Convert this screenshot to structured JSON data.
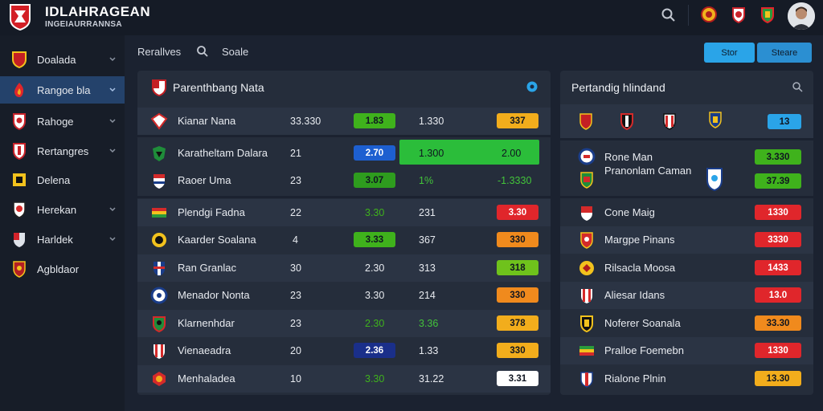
{
  "header": {
    "brand_title": "IDLAHRAGEAN",
    "brand_subtitle": "INGEIAURRANNSA"
  },
  "sidebar": {
    "items": [
      {
        "label": "Doalada",
        "icon": "club-crest-icon"
      },
      {
        "label": "Rangoe bla",
        "icon": "flame-crest-icon"
      },
      {
        "label": "Rahoge",
        "icon": "shield-crest-icon"
      },
      {
        "label": "Rertangres",
        "icon": "shield-crest-icon"
      },
      {
        "label": "Delena",
        "icon": "yellow-badge-icon"
      },
      {
        "label": "Herekan",
        "icon": "shield-crest-icon"
      },
      {
        "label": "Harldek",
        "icon": "flag-crest-icon"
      },
      {
        "label": "Agbldaor",
        "icon": "shield-crest-icon"
      }
    ]
  },
  "subnav": {
    "tab1": "Rerallves",
    "tab2": "Soale",
    "btn_primary": "Stor",
    "btn_secondary": "Steare"
  },
  "left_panel": {
    "title": "Parenthbang Nata",
    "rows": [
      {
        "team": "Kianar Nana",
        "n1": "33.330",
        "p1": "1.83",
        "n2": "1.330",
        "p2": "337"
      },
      {
        "team": "Karatheltam Dalara",
        "n1": "21",
        "p1": "2.70",
        "n2": "1.300",
        "p2": "2.00"
      },
      {
        "team": "Raoer Uma",
        "n1": "23",
        "p1": "3.07",
        "n2": "1%",
        "p2": "-1.3330"
      },
      {
        "team": "Plendgi Fadna",
        "n1": "22",
        "p1": "3.30",
        "n2": "231",
        "p2": "3.30"
      },
      {
        "team": "Kaarder Soalana",
        "n1": "4",
        "p1": "3.33",
        "n2": "367",
        "p2": "330"
      },
      {
        "team": "Ran Granlac",
        "n1": "30",
        "p1": "2.30",
        "n2": "313",
        "p2": "318"
      },
      {
        "team": "Menador Nonta",
        "n1": "23",
        "p1": "3.30",
        "n2": "214",
        "p2": "330"
      },
      {
        "team": "Klarnenhdar",
        "n1": "23",
        "p1": "2.30",
        "n2": "3.36",
        "p2": "378"
      },
      {
        "team": "Vienaeadra",
        "n1": "20",
        "p1": "2.36",
        "n2": "1.33",
        "p2": "330"
      },
      {
        "team": "Menhaladea",
        "n1": "10",
        "p1": "3.30",
        "n2": "31.22",
        "p2": "3.31"
      }
    ]
  },
  "right_panel": {
    "title": "Pertandig hlindand",
    "header_pill": "13",
    "rows": [
      {
        "team": "Rone Man",
        "val": "3.330"
      },
      {
        "team": "Pranonlam Caman",
        "val": "37.39"
      },
      {
        "team": "Cone Maig",
        "val": "1330"
      },
      {
        "team": "Margpe Pinans",
        "val": "3330"
      },
      {
        "team": "Rilsacla Moosa",
        "val": "1433"
      },
      {
        "team": "Aliesar Idans",
        "val": "13.0"
      },
      {
        "team": "Noferer Soanala",
        "val": "33.30"
      },
      {
        "team": "Pralloe Foemebn",
        "val": "1330"
      },
      {
        "team": "Rialone Plnin",
        "val": "13.30"
      }
    ]
  },
  "colors": {
    "green": "#3fb21c",
    "blue": "#1d5fd0",
    "orange": "#f08a1d",
    "amber": "#f2ad1c",
    "red": "#e0262b",
    "accent": "#2aa4e8"
  }
}
